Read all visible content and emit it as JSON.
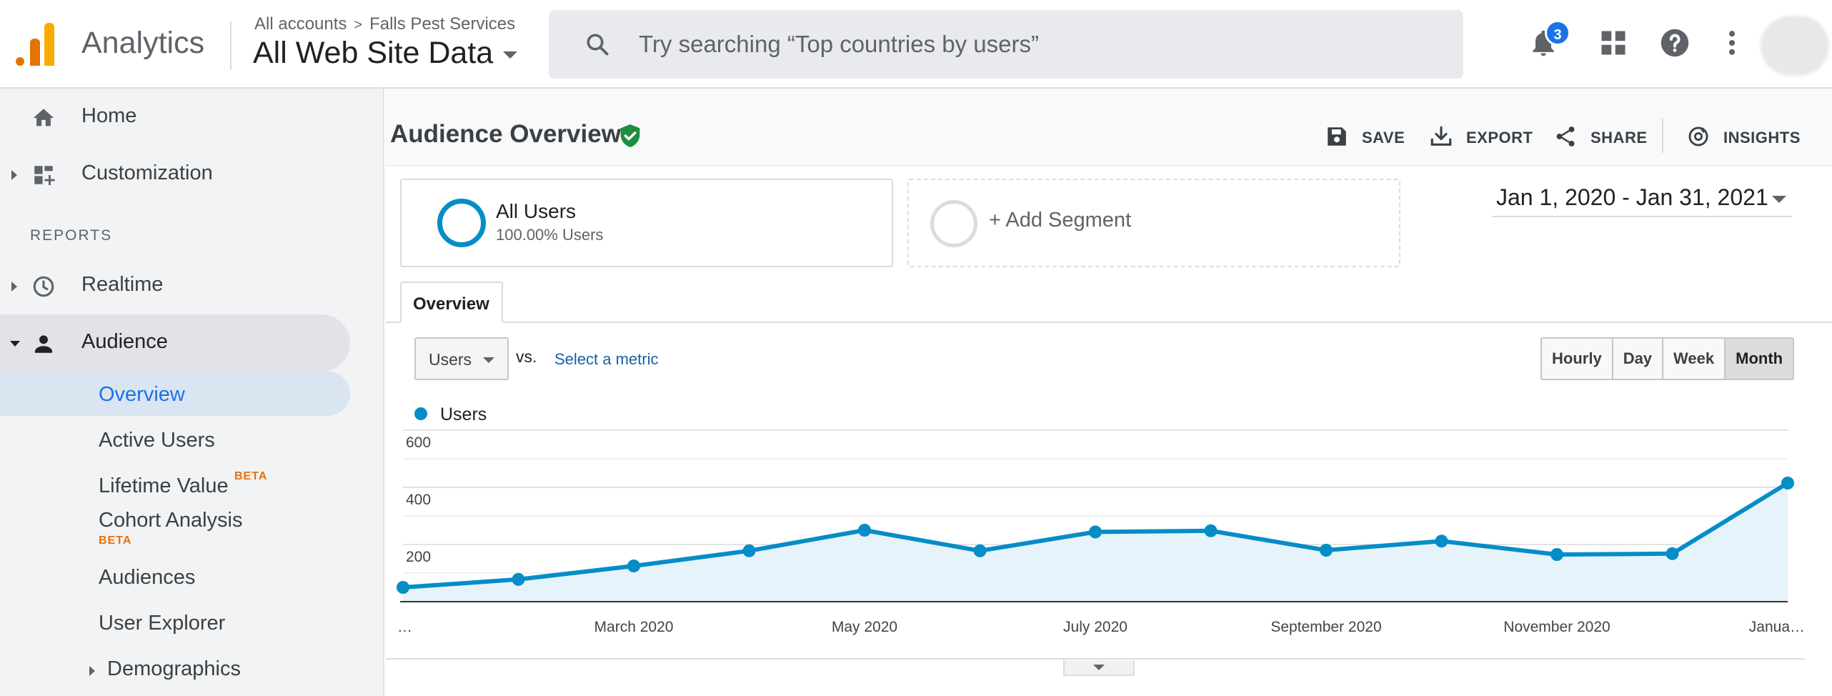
{
  "header": {
    "app_name": "Analytics",
    "breadcrumb": {
      "account": "All accounts",
      "separator": ">",
      "property": "Falls Pest Services"
    },
    "view_name": "All Web Site Data",
    "search_placeholder": "Try searching “Top countries by users”",
    "notification_count": "3",
    "icons": [
      "notifications-icon",
      "apps-grid-icon",
      "help-icon",
      "more-vert-icon"
    ]
  },
  "sidebar": {
    "home": "Home",
    "customization": "Customization",
    "reports_label": "REPORTS",
    "realtime": "Realtime",
    "audience": "Audience",
    "audience_items": [
      {
        "label": "Overview"
      },
      {
        "label": "Active Users"
      },
      {
        "label": "Lifetime Value",
        "badge": "BETA"
      },
      {
        "label": "Cohort Analysis",
        "badge": "BETA"
      },
      {
        "label": "Audiences"
      },
      {
        "label": "User Explorer"
      },
      {
        "label": "Demographics"
      }
    ]
  },
  "page": {
    "title": "Audience Overview",
    "actions": {
      "save": "SAVE",
      "export": "EXPORT",
      "share": "SHARE",
      "insights": "INSIGHTS"
    },
    "segment": {
      "name": "All Users",
      "detail": "100.00% Users"
    },
    "add_segment": "+ Add Segment",
    "date_range": "Jan 1, 2020 - Jan 31, 2021",
    "tab": "Overview",
    "metric": "Users",
    "vs_label": "vs.",
    "select_metric": "Select a metric",
    "granularity": [
      "Hourly",
      "Day",
      "Week",
      "Month"
    ],
    "selected_granularity": "Month",
    "legend": "Users"
  },
  "chart_data": {
    "type": "area",
    "series": [
      {
        "name": "Users",
        "color": "#058dc7",
        "values": [
          50,
          78,
          125,
          178,
          250,
          178,
          244,
          248,
          180,
          212,
          165,
          168,
          415
        ]
      }
    ],
    "x": [
      "Jan 2020",
      "Feb 2020",
      "March 2020",
      "Apr 2020",
      "May 2020",
      "Jun 2020",
      "July 2020",
      "Aug 2020",
      "September 2020",
      "Oct 2020",
      "November 2020",
      "Dec 2020",
      "January 2021"
    ],
    "x_tick_labels": [
      "…",
      "March 2020",
      "May 2020",
      "July 2020",
      "September 2020",
      "November 2020",
      "Janua…"
    ],
    "x_tick_indices": [
      0,
      2,
      4,
      6,
      8,
      10,
      12
    ],
    "y_ticks": [
      "600",
      "400",
      "200"
    ],
    "y_tick_values": [
      600,
      400,
      200
    ],
    "ylim": [
      0,
      600
    ],
    "grid": true
  }
}
